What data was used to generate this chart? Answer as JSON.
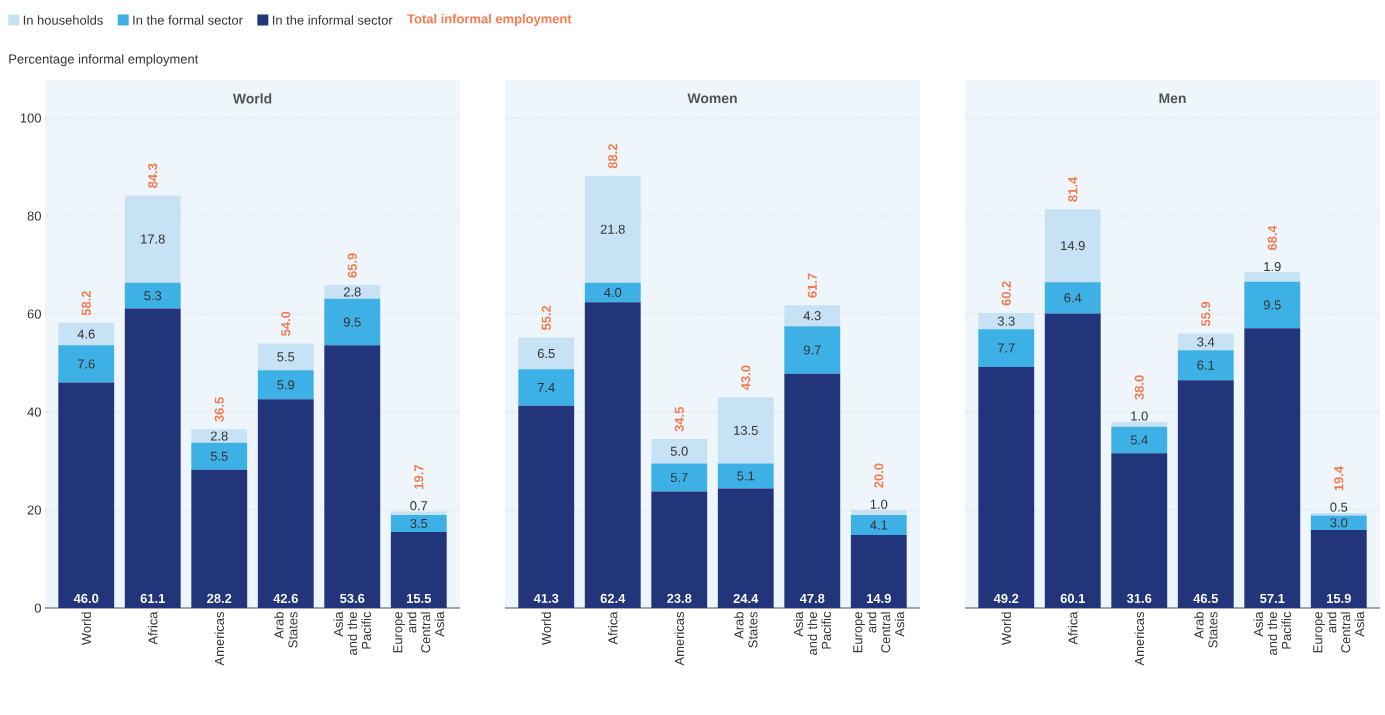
{
  "chart_data": [
    {
      "type": "bar",
      "stacked": true,
      "title": "World",
      "ylabel": "Percentage informal employment",
      "legend": "top left",
      "grid": "y",
      "ylim": [
        0,
        100
      ],
      "yticks": [
        0,
        20,
        40,
        60,
        80,
        100
      ],
      "categories": [
        "World",
        "Africa",
        "Americas",
        "Arab States",
        "Asia and the Pacific",
        "Europe and Central Asia"
      ],
      "series": [
        {
          "name": "In the informal sector",
          "color": "#22357a",
          "values": [
            46.0,
            61.1,
            28.2,
            42.6,
            53.6,
            15.5
          ],
          "value_labels": [
            "46.0",
            "61.1",
            "28.2",
            "42.6",
            "53.6",
            "15.5"
          ]
        },
        {
          "name": "In the formal sector",
          "color": "#3db1e5",
          "values": [
            7.6,
            5.3,
            5.5,
            5.9,
            9.5,
            3.5
          ],
          "value_labels": [
            "7.6",
            "5.3",
            "5.5",
            "5.9",
            "9.5",
            "3.5"
          ]
        },
        {
          "name": "In households",
          "color": "#c6e2f4",
          "values": [
            4.6,
            17.8,
            2.8,
            5.5,
            2.8,
            0.7
          ],
          "value_labels": [
            "4.6",
            "17.8",
            "2.8",
            "5.5",
            "2.8",
            "0.7"
          ]
        }
      ],
      "totals": [
        "58.2",
        "84.3",
        "36.5",
        "54.0",
        "65.9",
        "19.7"
      ],
      "annotations": [
        "Total informal employment"
      ]
    },
    {
      "type": "bar",
      "stacked": true,
      "title": "Women",
      "grid": "y",
      "ylim": [
        0,
        100
      ],
      "yticks": [
        0,
        20,
        40,
        60,
        80,
        100
      ],
      "tick_labels": "x",
      "categories": [
        "World",
        "Africa",
        "Americas",
        "Arab States",
        "Asia and the Pacific",
        "Europe and Central Asia"
      ],
      "series": [
        {
          "color": "#22357a",
          "values": [
            41.3,
            62.4,
            23.8,
            24.4,
            47.8,
            14.9
          ],
          "value_labels": [
            "41.3",
            "62.4",
            "23.8",
            "24.4",
            "47.8",
            "14.9"
          ]
        },
        {
          "color": "#3db1e5",
          "values": [
            7.4,
            4.0,
            5.7,
            5.1,
            9.7,
            4.1
          ],
          "value_labels": [
            "7.4",
            "4.0",
            "5.7",
            "5.1",
            "9.7",
            "4.1"
          ]
        },
        {
          "color": "#c6e2f4",
          "values": [
            6.5,
            21.8,
            5.0,
            13.5,
            4.3,
            1.0
          ],
          "value_labels": [
            "6.5",
            "21.8",
            "5.0",
            "13.5",
            "4.3",
            "1.0"
          ]
        }
      ],
      "totals": [
        "55.2",
        "88.2",
        "34.5",
        "43.0",
        "61.7",
        "20.0"
      ]
    },
    {
      "type": "bar",
      "stacked": true,
      "title": "Men",
      "grid": "y",
      "ylim": [
        0,
        100
      ],
      "yticks": [
        0,
        20,
        40,
        60,
        80,
        100
      ],
      "tick_labels": "x",
      "categories": [
        "World",
        "Africa",
        "Americas",
        "Arab States",
        "Asia and the Pacific",
        "Europe and Central Asia"
      ],
      "series": [
        {
          "color": "#22357a",
          "values": [
            49.2,
            60.1,
            31.6,
            46.5,
            57.1,
            15.9
          ],
          "value_labels": [
            "49.2",
            "60.1",
            "31.6",
            "46.5",
            "57.1",
            "15.9"
          ]
        },
        {
          "color": "#3db1e5",
          "values": [
            7.7,
            6.4,
            5.4,
            6.1,
            9.5,
            3.0
          ],
          "value_labels": [
            "7.7",
            "6.4",
            "5.4",
            "6.1",
            "9.5",
            "3.0"
          ]
        },
        {
          "color": "#c6e2f4",
          "values": [
            3.3,
            14.9,
            1.0,
            3.4,
            1.9,
            0.5
          ],
          "value_labels": [
            "3.3",
            "14.9",
            "1.0",
            "3.4",
            "1.9",
            "0.5"
          ]
        }
      ],
      "totals": [
        "60.2",
        "81.4",
        "38.0",
        "55.9",
        "68.4",
        "19.4"
      ]
    }
  ]
}
